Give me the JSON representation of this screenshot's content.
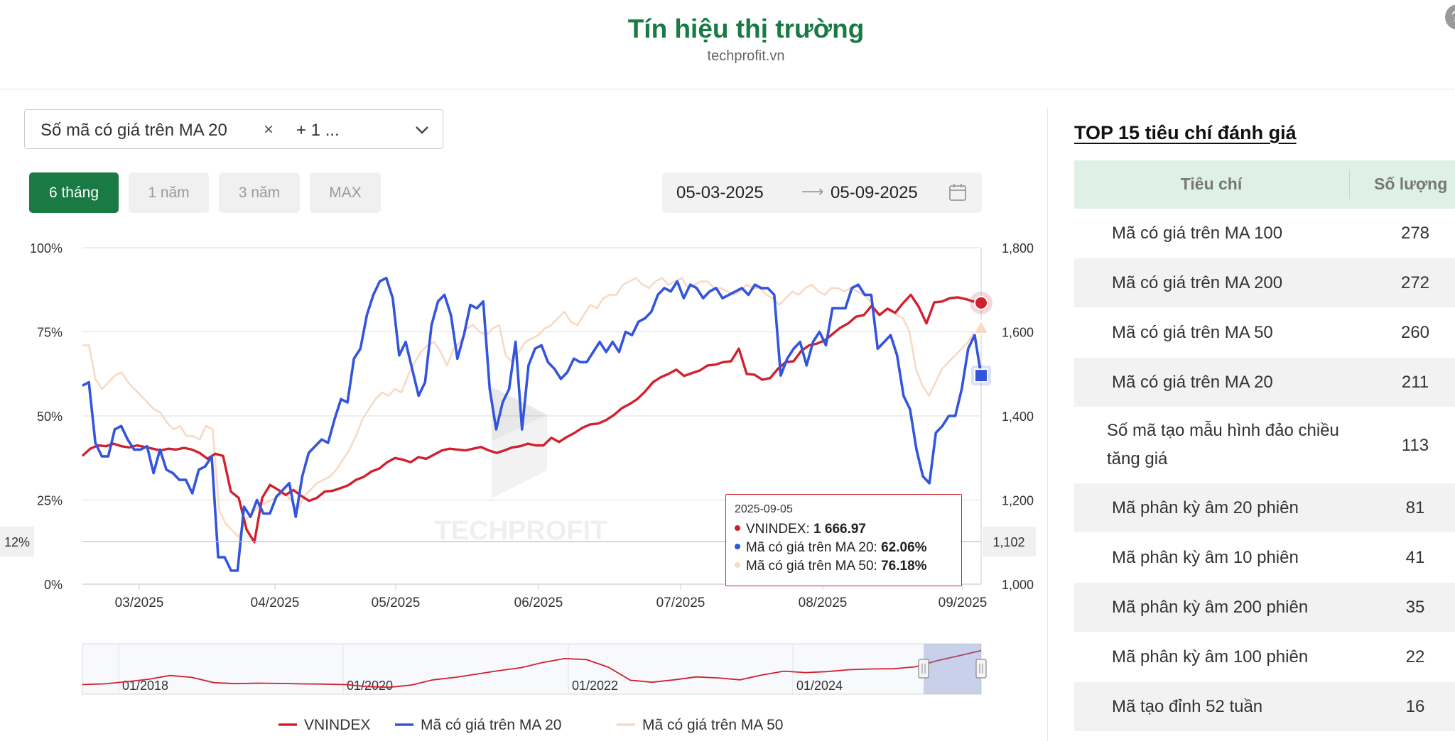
{
  "header": {
    "title": "Tín hiệu thị trường",
    "subtitle": "techprofit.vn",
    "corner_button": "?"
  },
  "series_select": {
    "selected": "Số mã có giá trên MA 20",
    "remove": "×",
    "more": "+ 1 ..."
  },
  "ranges": {
    "six_months": "6 tháng",
    "one_year": "1 năm",
    "three_years": "3 năm",
    "max": "MAX"
  },
  "date_range": {
    "start": "05-03-2025",
    "arrow": "⟶",
    "end": "05-09-2025"
  },
  "crosshair": {
    "left_label": "12%",
    "right_label": "1,102"
  },
  "tooltip": {
    "date": "2025-09-05",
    "rows": [
      {
        "label": "VNINDEX:",
        "value": "1 666.97"
      },
      {
        "label": "Mã có giá trên MA 20:",
        "value": "62.06%"
      },
      {
        "label": "Mã có giá trên MA 50:",
        "value": "76.18%"
      }
    ]
  },
  "colors": {
    "vnindex": "#d0212e",
    "ma20": "#3355dd",
    "ma50": "#f7d9c4",
    "brand": "#1a7a44"
  },
  "chart_data": {
    "type": "line",
    "watermark": "TECHPROFIT",
    "x_tick_labels": [
      "03/2025",
      "04/2025",
      "05/2025",
      "06/2025",
      "07/2025",
      "08/2025",
      "09/2025"
    ],
    "y_left": {
      "ticks": [
        "100%",
        "75%",
        "50%",
        "25%",
        "0%"
      ],
      "range": [
        0,
        100
      ]
    },
    "y_right": {
      "ticks": [
        "1,800",
        "1,600",
        "1,400",
        "1,200",
        "1,000"
      ],
      "range": [
        1000,
        1800
      ]
    },
    "grid": true,
    "legend_position": "bottom",
    "series": [
      {
        "name": "VNINDEX",
        "axis": "right",
        "color": "#d0212e",
        "values": [
          1305,
          1322,
          1330,
          1328,
          1334,
          1328,
          1325,
          1330,
          1326,
          1322,
          1318,
          1322,
          1320,
          1324,
          1320,
          1312,
          1298,
          1310,
          1305,
          1220,
          1205,
          1130,
          1100,
          1205,
          1236,
          1225,
          1212,
          1224,
          1210,
          1198,
          1205,
          1220,
          1222,
          1228,
          1235,
          1248,
          1255,
          1268,
          1275,
          1290,
          1300,
          1296,
          1290,
          1302,
          1298,
          1308,
          1318,
          1322,
          1320,
          1318,
          1322,
          1326,
          1318,
          1312,
          1318,
          1325,
          1328,
          1334,
          1330,
          1330,
          1348,
          1338,
          1350,
          1360,
          1372,
          1380,
          1382,
          1390,
          1402,
          1418,
          1428,
          1440,
          1458,
          1480,
          1492,
          1500,
          1510,
          1495,
          1502,
          1508,
          1520,
          1522,
          1528,
          1530,
          1560,
          1500,
          1498,
          1486,
          1490,
          1512,
          1528,
          1530,
          1555,
          1568,
          1572,
          1580,
          1595,
          1610,
          1620,
          1636,
          1640,
          1662,
          1640,
          1655,
          1645,
          1668,
          1688,
          1660,
          1620,
          1670,
          1672,
          1680,
          1682,
          1678,
          1672,
          1667
        ]
      },
      {
        "name": "Mã có giá trên MA 20",
        "axis": "left",
        "color": "#3355dd",
        "values": [
          59,
          60,
          42,
          38,
          38,
          46,
          47,
          43,
          40,
          40,
          41,
          33,
          40,
          34,
          33,
          31,
          31,
          27,
          34,
          35,
          38,
          8,
          8,
          4,
          4,
          23,
          20,
          25,
          21,
          21,
          26,
          28,
          30,
          20,
          32,
          39,
          41,
          43,
          42,
          49,
          55,
          54,
          67,
          70,
          80,
          86,
          90,
          91,
          85,
          68,
          72,
          64,
          56,
          60,
          77,
          84,
          86,
          80,
          67,
          74,
          83,
          82,
          84,
          58,
          46,
          54,
          58,
          72,
          46,
          65,
          70,
          71,
          66,
          64,
          61,
          63,
          67,
          66,
          66,
          69,
          72,
          69,
          72,
          69,
          75,
          74,
          78,
          79,
          81,
          86,
          88,
          87,
          90,
          85,
          89,
          88,
          85,
          87,
          88,
          85,
          86,
          87,
          88,
          86,
          89,
          88,
          88,
          86,
          62,
          67,
          70,
          72,
          65,
          72,
          75,
          71,
          82,
          82,
          82,
          88,
          89,
          86,
          86,
          70,
          72,
          74,
          68,
          56,
          52,
          40,
          32,
          30,
          45,
          47,
          50,
          50,
          58,
          70,
          74,
          62
        ]
      },
      {
        "name": "Mã có giá trên MA 50",
        "axis": "left",
        "color": "#f7d9c4",
        "values": [
          71,
          71,
          61,
          58,
          60,
          62,
          63,
          60,
          58,
          56,
          54,
          52,
          51,
          48,
          46,
          47,
          44,
          44,
          43,
          47,
          46,
          22,
          18,
          16,
          14,
          19,
          21,
          23,
          24,
          25,
          26,
          27,
          25,
          22,
          26,
          28,
          30,
          31,
          32,
          34,
          37,
          40,
          44,
          49,
          52,
          55,
          57,
          56,
          58,
          57,
          62,
          66,
          69,
          71,
          72,
          69,
          65,
          70,
          72,
          76,
          77,
          75,
          74,
          76,
          77,
          68,
          66,
          69,
          72,
          73,
          74,
          76,
          77,
          79,
          81,
          78,
          77,
          80,
          83,
          82,
          85,
          86,
          86,
          89,
          90,
          91,
          89,
          88,
          90,
          91,
          89,
          90,
          91,
          88,
          89,
          90,
          90,
          88,
          88,
          87,
          86,
          87,
          89,
          88,
          88,
          86,
          85,
          83,
          85,
          87,
          86,
          88,
          89,
          87,
          86,
          88,
          88,
          87,
          88,
          87,
          86,
          84,
          80,
          81,
          82,
          80,
          79,
          75,
          64,
          59,
          56,
          60,
          64,
          66,
          68,
          70,
          72,
          75,
          76
        ]
      }
    ],
    "navigator": {
      "x_tick_labels": [
        "01/2018",
        "01/2020",
        "01/2022",
        "01/2024"
      ],
      "values": [
        960,
        975,
        1020,
        1070,
        1150,
        1110,
        1000,
        980,
        990,
        985,
        975,
        970,
        960,
        920,
        905,
        950,
        1060,
        1110,
        1180,
        1250,
        1310,
        1420,
        1500,
        1480,
        1320,
        1050,
        1010,
        1060,
        1120,
        1100,
        1060,
        1160,
        1240,
        1210,
        1230,
        1270,
        1285,
        1290,
        1330,
        1460,
        1560,
        1667
      ]
    }
  },
  "top_list": {
    "title": "TOP 15 tiêu chí đánh giá",
    "col_criteria": "Tiêu chí",
    "col_count": "Số lượng",
    "rows": [
      {
        "name": "Mã có giá trên MA 100",
        "count": "278"
      },
      {
        "name": "Mã có giá trên MA 200",
        "count": "272"
      },
      {
        "name": "Mã có giá trên MA 50",
        "count": "260"
      },
      {
        "name": "Mã có giá trên MA 20",
        "count": "211"
      },
      {
        "name": "Số mã tạo mẫu hình đảo chiều tăng giá",
        "count": "113"
      },
      {
        "name": "Mã phân kỳ âm 20 phiên",
        "count": "81"
      },
      {
        "name": "Mã phân kỳ âm 10 phiên",
        "count": "41"
      },
      {
        "name": "Mã phân kỳ âm 200 phiên",
        "count": "35"
      },
      {
        "name": "Mã phân kỳ âm 100 phiên",
        "count": "22"
      },
      {
        "name": "Mã tạo đỉnh 52 tuần",
        "count": "16"
      }
    ]
  }
}
